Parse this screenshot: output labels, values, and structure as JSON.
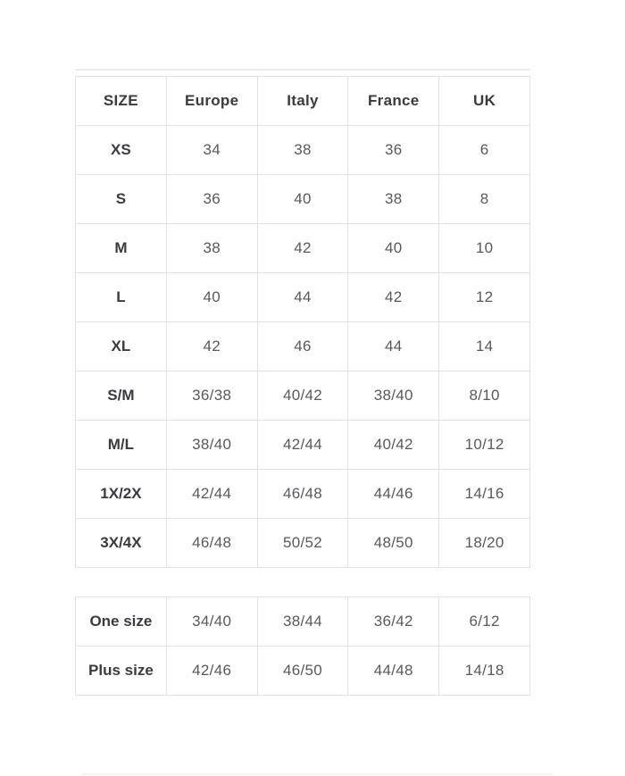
{
  "page": {
    "background_color": "#ffffff",
    "border_color": "#e2e2e4",
    "header_text_color": "#3a3a40",
    "value_text_color": "#58595d"
  },
  "size_chart": {
    "columns": [
      "SIZE",
      "Europe",
      "Italy",
      "France",
      "UK"
    ],
    "rows": [
      {
        "size": "XS",
        "values": [
          "34",
          "38",
          "36",
          "6"
        ]
      },
      {
        "size": "S",
        "values": [
          "36",
          "40",
          "38",
          "8"
        ]
      },
      {
        "size": "M",
        "values": [
          "38",
          "42",
          "40",
          "10"
        ]
      },
      {
        "size": "L",
        "values": [
          "40",
          "44",
          "42",
          "12"
        ]
      },
      {
        "size": "XL",
        "values": [
          "42",
          "46",
          "44",
          "14"
        ]
      },
      {
        "size": "S/M",
        "values": [
          "36/38",
          "40/42",
          "38/40",
          "8/10"
        ]
      },
      {
        "size": "M/L",
        "values": [
          "38/40",
          "42/44",
          "40/42",
          "10/12"
        ]
      },
      {
        "size": "1X/2X",
        "values": [
          "42/44",
          "46/48",
          "44/46",
          "14/16"
        ]
      },
      {
        "size": "3X/4X",
        "values": [
          "46/48",
          "50/52",
          "48/50",
          "18/20"
        ]
      }
    ]
  },
  "extra_chart": {
    "rows": [
      {
        "size": "One size",
        "values": [
          "34/40",
          "38/44",
          "36/42",
          "6/12"
        ]
      },
      {
        "size": "Plus size",
        "values": [
          "42/46",
          "46/50",
          "44/48",
          "14/18"
        ]
      }
    ]
  }
}
